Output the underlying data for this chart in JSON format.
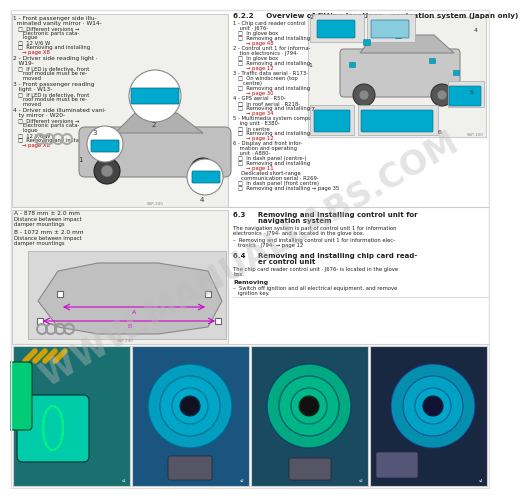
{
  "bg_color": "#ffffff",
  "panel_bg": "#f0f0ec",
  "border_color": "#cccccc",
  "watermark_text": "WWW.MANUALLABS.COM",
  "watermark_color": "#bbbbbb",
  "watermark_alpha": 0.4,
  "accent_color": "#00aacc",
  "red_link_color": "#cc0000",
  "text_color": "#222222",
  "title_622": "6.2.2     Overview of fitting locations - navigation system (Japan only)"
}
